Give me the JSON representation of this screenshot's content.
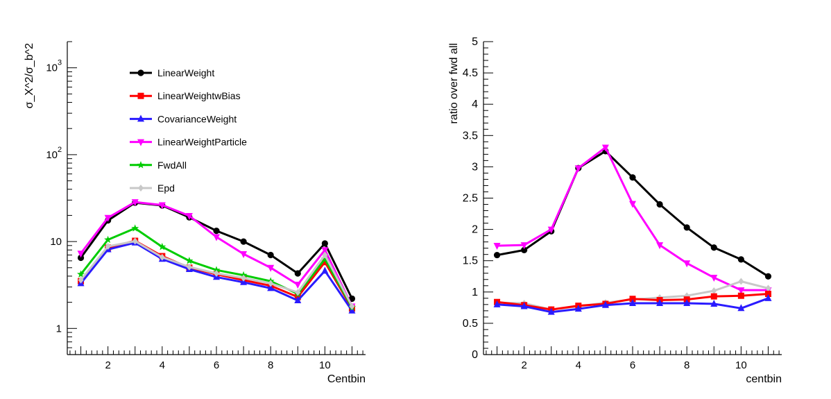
{
  "chart_data": [
    {
      "type": "line",
      "ylabel": "σ_X^2/σ_b^2",
      "xlabel": "Centbin",
      "yscale": "log",
      "xlim": [
        0.5,
        11.5
      ],
      "ylim": [
        0.5,
        2000
      ],
      "x_ticks": [
        "2",
        "4",
        "6",
        "8",
        "10"
      ],
      "y_ticks": [
        {
          "value": 1,
          "label": "1"
        },
        {
          "value": 10,
          "label": "10"
        },
        {
          "value": 100,
          "label": "10",
          "exp": "2"
        },
        {
          "value": 1000,
          "label": "10",
          "exp": "3"
        }
      ],
      "legend": "top-left",
      "x": [
        1,
        2,
        3,
        4,
        5,
        6,
        7,
        8,
        9,
        10,
        11
      ],
      "series": [
        {
          "name": "LinearWeight",
          "color": "#000000",
          "marker": "circle",
          "values": [
            6.5,
            17.5,
            28,
            26,
            19,
            13.3,
            10,
            7,
            4.3,
            9.5,
            2.2
          ]
        },
        {
          "name": "LinearWeightwBias",
          "color": "#ff0000",
          "marker": "square",
          "values": [
            3.5,
            8.5,
            10.2,
            6.8,
            5.0,
            4.2,
            3.6,
            3.1,
            2.3,
            5.8,
            1.7
          ]
        },
        {
          "name": "CovarianceWeight",
          "color": "#2a1bff",
          "marker": "triangle-up",
          "values": [
            3.3,
            8.1,
            9.7,
            6.3,
            4.8,
            3.9,
            3.4,
            2.9,
            2.1,
            4.6,
            1.6
          ]
        },
        {
          "name": "LinearWeightParticle",
          "color": "#ff00ff",
          "marker": "triangle-down",
          "values": [
            7.3,
            18.8,
            28.5,
            26.3,
            19.8,
            11.3,
            7.2,
            5.0,
            3.2,
            8.0,
            1.8
          ]
        },
        {
          "name": "FwdAll",
          "color": "#00cc00",
          "marker": "star",
          "values": [
            4.2,
            10.5,
            14.2,
            8.7,
            6.0,
            4.7,
            4.1,
            3.5,
            2.5,
            6.3,
            1.75
          ]
        },
        {
          "name": "Epd",
          "color": "#c8c8c8",
          "marker": "diamond",
          "values": [
            3.6,
            8.8,
            10.1,
            6.6,
            5.1,
            4.3,
            3.8,
            3.3,
            2.6,
            7.0,
            1.8
          ]
        }
      ]
    },
    {
      "type": "line",
      "ylabel": "ratio over fwd all",
      "xlabel": "centbin",
      "xlim": [
        0.5,
        11.5
      ],
      "ylim": [
        0,
        5
      ],
      "x_ticks": [
        "2",
        "4",
        "6",
        "8",
        "10"
      ],
      "y_ticks": [
        "0",
        "0.5",
        "1",
        "1.5",
        "2",
        "2.5",
        "3",
        "3.5",
        "4",
        "4.5",
        "5"
      ],
      "x": [
        1,
        2,
        3,
        4,
        5,
        6,
        7,
        8,
        9,
        10,
        11
      ],
      "series": [
        {
          "color": "#000000",
          "marker": "circle",
          "values": [
            1.59,
            1.67,
            1.97,
            2.98,
            3.25,
            2.83,
            2.4,
            2.03,
            1.71,
            1.52,
            1.25
          ]
        },
        {
          "color": "#ff00ff",
          "marker": "triangle-down",
          "values": [
            1.74,
            1.75,
            2.0,
            2.98,
            3.31,
            2.41,
            1.75,
            1.46,
            1.23,
            1.03,
            1.03
          ]
        },
        {
          "color": "#c8c8c8",
          "marker": "diamond",
          "values": [
            0.83,
            0.82,
            0.72,
            0.77,
            0.83,
            0.88,
            0.91,
            0.94,
            1.02,
            1.17,
            1.06
          ]
        },
        {
          "color": "#ff0000",
          "marker": "square",
          "values": [
            0.84,
            0.79,
            0.72,
            0.78,
            0.81,
            0.89,
            0.87,
            0.88,
            0.93,
            0.94,
            0.97
          ]
        },
        {
          "color": "#2a1bff",
          "marker": "triangle-up",
          "values": [
            0.8,
            0.77,
            0.68,
            0.73,
            0.79,
            0.82,
            0.82,
            0.82,
            0.81,
            0.74,
            0.9
          ]
        }
      ]
    }
  ]
}
